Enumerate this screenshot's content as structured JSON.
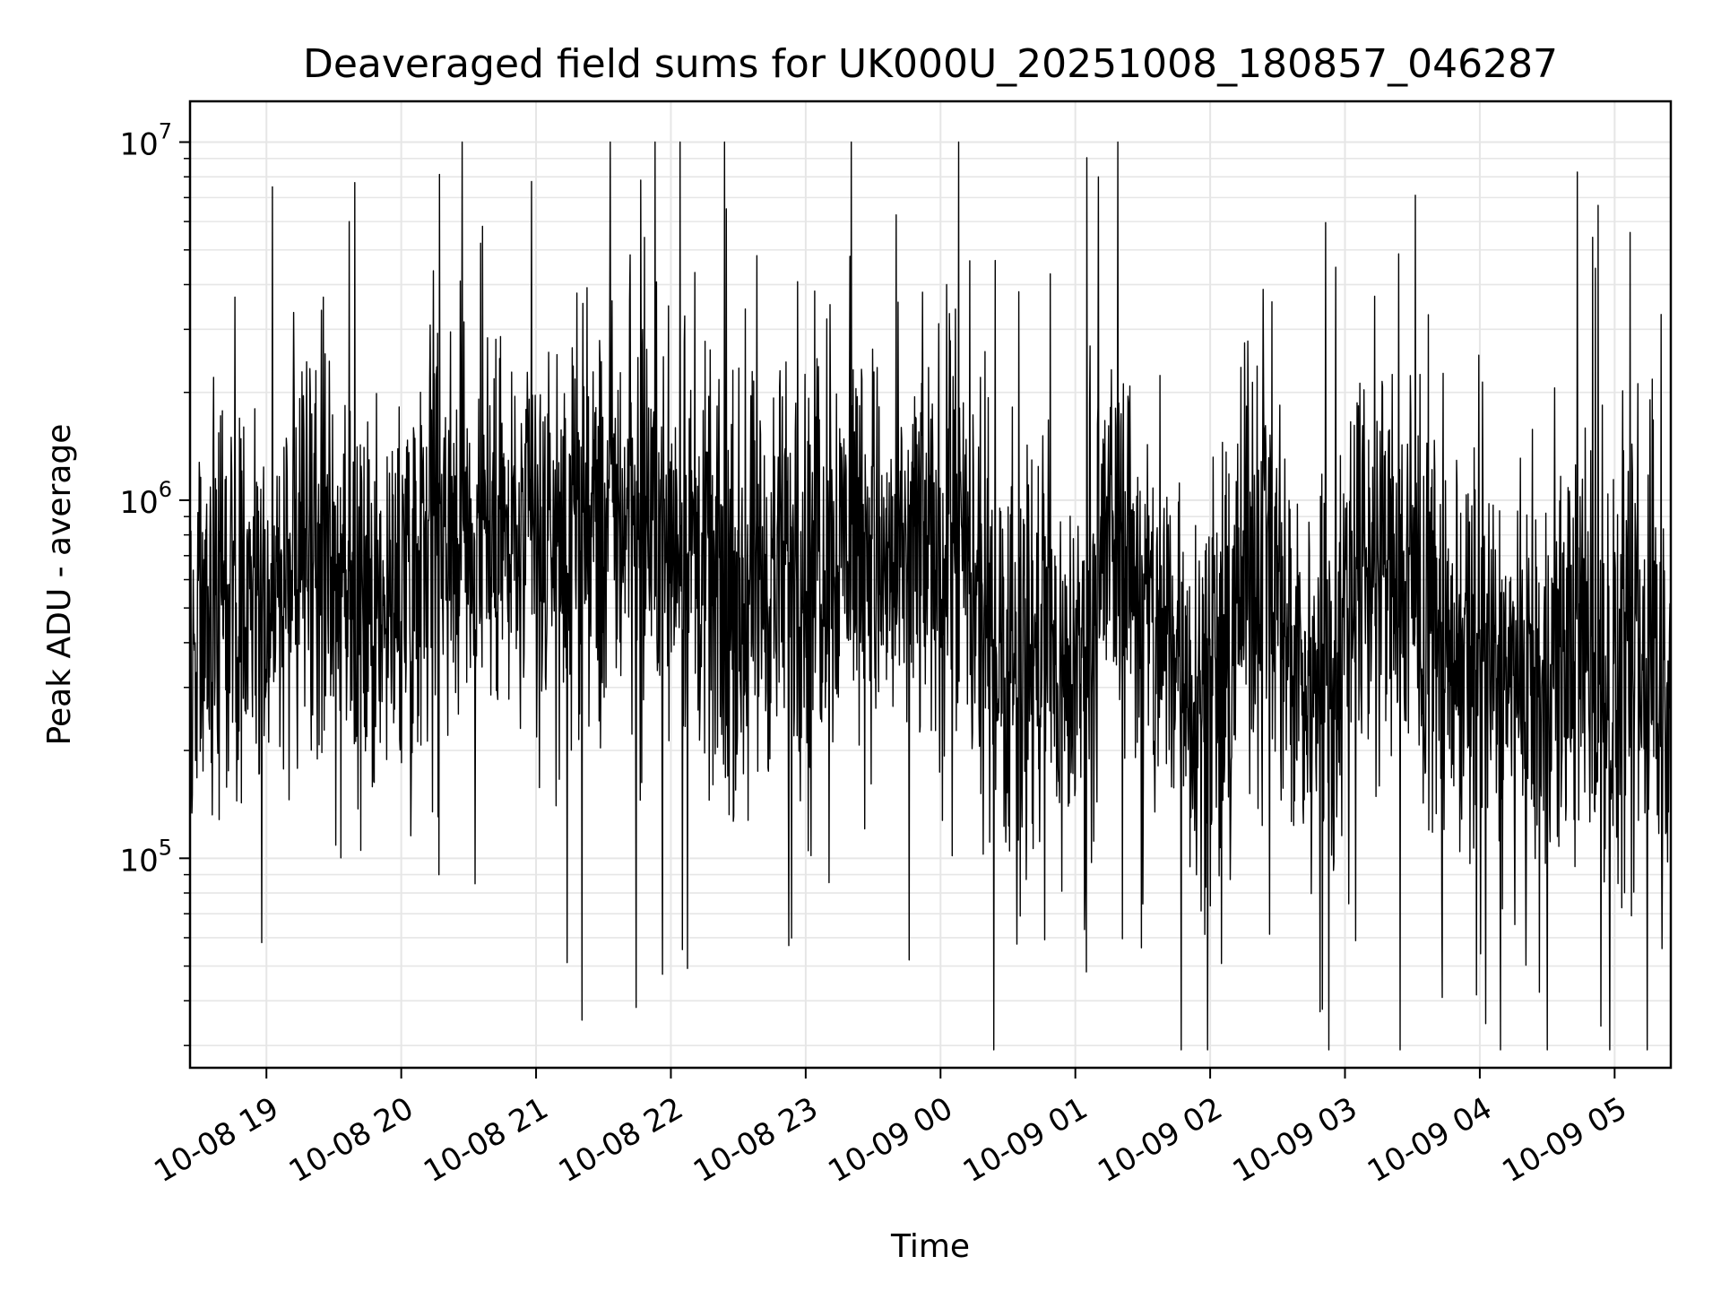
{
  "chart_data": {
    "type": "line",
    "title": "Deaveraged field sums for UK000U_20251008_180857_046287",
    "xlabel": "Time",
    "ylabel": "Peak ADU - average",
    "yscale": "log",
    "ylim": [
      26000,
      13000000
    ],
    "xlim": [
      "2025-10-08 18:26",
      "2025-10-09 05:25"
    ],
    "grid": true,
    "line_color": "#000000",
    "grid_color": "#e6e6e6",
    "x_ticks": [
      {
        "value": "2025-10-08 19:00",
        "label": "10-08 19"
      },
      {
        "value": "2025-10-08 20:00",
        "label": "10-08 20"
      },
      {
        "value": "2025-10-08 21:00",
        "label": "10-08 21"
      },
      {
        "value": "2025-10-08 22:00",
        "label": "10-08 22"
      },
      {
        "value": "2025-10-08 23:00",
        "label": "10-08 23"
      },
      {
        "value": "2025-10-09 00:00",
        "label": "10-09 00"
      },
      {
        "value": "2025-10-09 01:00",
        "label": "10-09 01"
      },
      {
        "value": "2025-10-09 02:00",
        "label": "10-09 02"
      },
      {
        "value": "2025-10-09 03:00",
        "label": "10-09 03"
      },
      {
        "value": "2025-10-09 04:00",
        "label": "10-09 04"
      },
      {
        "value": "2025-10-09 05:00",
        "label": "10-09 05"
      }
    ],
    "y_ticks": [
      {
        "value": 100000,
        "base": "10",
        "exp": "5"
      },
      {
        "value": 1000000,
        "base": "10",
        "exp": "6"
      },
      {
        "value": 10000000,
        "base": "10",
        "exp": "7"
      }
    ],
    "series": [
      {
        "x": [
          "2025-10-08 18:26",
          "2025-10-08 18:35",
          "2025-10-08 18:45",
          "2025-10-08 18:55",
          "2025-10-08 19:05",
          "2025-10-08 19:15",
          "2025-10-08 19:25",
          "2025-10-08 19:35",
          "2025-10-08 19:45",
          "2025-10-08 19:55",
          "2025-10-08 20:05",
          "2025-10-08 20:15",
          "2025-10-08 20:25",
          "2025-10-08 20:35",
          "2025-10-08 20:45",
          "2025-10-08 20:55",
          "2025-10-08 21:05",
          "2025-10-08 21:15",
          "2025-10-08 21:25",
          "2025-10-08 21:35",
          "2025-10-08 21:45",
          "2025-10-08 21:55",
          "2025-10-08 22:05",
          "2025-10-08 22:15",
          "2025-10-08 22:25",
          "2025-10-08 22:35",
          "2025-10-08 22:45",
          "2025-10-08 22:55",
          "2025-10-08 23:05",
          "2025-10-08 23:15",
          "2025-10-08 23:25",
          "2025-10-08 23:35",
          "2025-10-08 23:45",
          "2025-10-08 23:55",
          "2025-10-09 00:05",
          "2025-10-09 00:15",
          "2025-10-09 00:25",
          "2025-10-09 00:35",
          "2025-10-09 00:45",
          "2025-10-09 00:55",
          "2025-10-09 01:05",
          "2025-10-09 01:15",
          "2025-10-09 01:25",
          "2025-10-09 01:35",
          "2025-10-09 01:45",
          "2025-10-09 01:55",
          "2025-10-09 02:05",
          "2025-10-09 02:15",
          "2025-10-09 02:25",
          "2025-10-09 02:35",
          "2025-10-09 02:45",
          "2025-10-09 02:55",
          "2025-10-09 03:05",
          "2025-10-09 03:15",
          "2025-10-09 03:25",
          "2025-10-09 03:35",
          "2025-10-09 03:45",
          "2025-10-09 03:55",
          "2025-10-09 04:05",
          "2025-10-09 04:15",
          "2025-10-09 04:25",
          "2025-10-09 04:35",
          "2025-10-09 04:45",
          "2025-10-09 04:55",
          "2025-10-09 05:05",
          "2025-10-09 05:15",
          "2025-10-09 05:25"
        ],
        "y": [
          300000,
          600000,
          500000,
          600000,
          550000,
          700000,
          800000,
          500000,
          450000,
          500000,
          650000,
          1200000,
          900000,
          800000,
          700000,
          750000,
          750000,
          700000,
          800000,
          900000,
          1000000,
          900000,
          800000,
          600000,
          500000,
          550000,
          600000,
          650000,
          700000,
          800000,
          900000,
          600000,
          700000,
          750000,
          800000,
          500000,
          400000,
          350000,
          400000,
          300000,
          400000,
          800000,
          700000,
          400000,
          350000,
          300000,
          280000,
          600000,
          800000,
          400000,
          300000,
          350000,
          600000,
          700000,
          600000,
          500000,
          400000,
          350000,
          300000,
          280000,
          300000,
          350000,
          450000,
          300000,
          300000,
          350000,
          300000
        ]
      }
    ]
  }
}
